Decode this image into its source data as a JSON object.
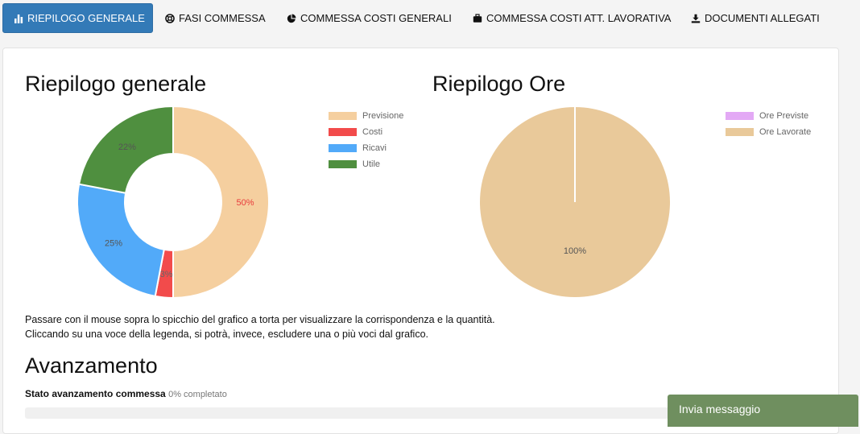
{
  "tabs": [
    {
      "label": "RIEPILOGO GENERALE",
      "icon": "bar-chart-icon",
      "active": true
    },
    {
      "label": "FASI COMMESSA",
      "icon": "life-ring-icon",
      "active": false
    },
    {
      "label": "COMMESSA COSTI GENERALI",
      "icon": "pie-chart-icon",
      "active": false
    },
    {
      "label": "COMMESSA COSTI ATT. LAVORATIVA",
      "icon": "briefcase-icon",
      "active": false
    },
    {
      "label": "DOCUMENTI ALLEGATI",
      "icon": "download-icon",
      "active": false
    }
  ],
  "summary": {
    "title": "Riepilogo generale"
  },
  "hours": {
    "title": "Riepilogo Ore"
  },
  "chart_data": [
    {
      "type": "pie",
      "variant": "doughnut",
      "categories": [
        "Previsione",
        "Costi",
        "Ricavi",
        "Utile"
      ],
      "values": [
        50,
        3,
        25,
        22
      ],
      "labels": [
        "50%",
        "3%",
        "25%",
        "22%"
      ],
      "colors": [
        "#f5cf9f",
        "#f24b4b",
        "#52aaf9",
        "#4f8f3f"
      ],
      "label_colors": [
        "#e83b3b",
        "#666666",
        "#555555",
        "#555555"
      ],
      "legend_position": "right"
    },
    {
      "type": "pie",
      "categories": [
        "Ore Previste",
        "Ore Lavorate"
      ],
      "values": [
        0,
        100
      ],
      "labels": [
        "",
        "100%"
      ],
      "colors": [
        "#e3a9f5",
        "#e9c99a"
      ],
      "label_colors": [
        "#555555",
        "#555555"
      ],
      "legend_position": "right"
    }
  ],
  "help": {
    "line1": "Passare con il mouse sopra lo spicchio del grafico a torta per visualizzare la corrispondenza e la quantità.",
    "line2": "Cliccando su una voce della legenda, si potrà, invece, escludere una o più voci dal grafico."
  },
  "progress": {
    "title": "Avanzamento",
    "label": "Stato avanzamento commessa",
    "sub": "0% completato",
    "value": 0
  },
  "message": {
    "label": "Invia messaggio"
  }
}
